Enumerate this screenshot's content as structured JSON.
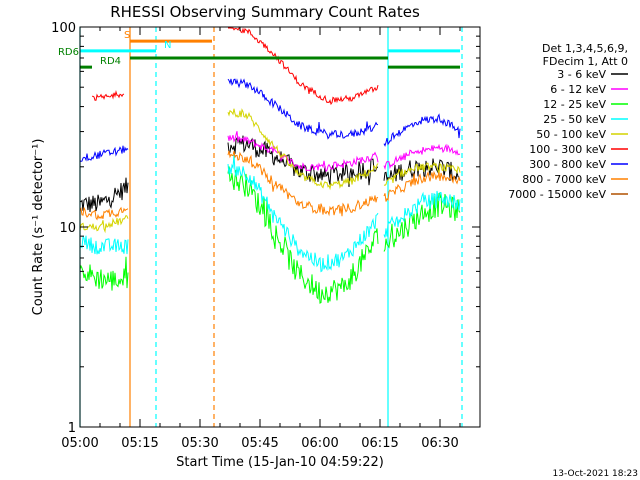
{
  "chart_data": {
    "type": "line",
    "title": "RHESSI Observing Summary Count Rates",
    "xlabel": "Start Time (15-Jan-10 04:59:22)",
    "ylabel": "Count Rate (s⁻¹ detector⁻¹)",
    "yscale": "log",
    "ylim": [
      1,
      100
    ],
    "xlim_minutes": [
      0,
      100
    ],
    "x_ticks": [
      {
        "m": 0,
        "label": "05:00"
      },
      {
        "m": 15,
        "label": "05:15"
      },
      {
        "m": 30,
        "label": "05:30"
      },
      {
        "m": 45,
        "label": "05:45"
      },
      {
        "m": 60,
        "label": "06:00"
      },
      {
        "m": 75,
        "label": "06:15"
      },
      {
        "m": 90,
        "label": "06:30"
      }
    ],
    "y_ticks": [
      {
        "v": 1,
        "label": "1"
      },
      {
        "v": 10,
        "label": "10"
      },
      {
        "v": 100,
        "label": "100"
      }
    ],
    "legend": {
      "placement": "right",
      "header": [
        "Det 1,3,4,5,6,9,",
        "FDecim 1, Att 0"
      ],
      "entries": [
        {
          "label": "3 - 6 keV",
          "color": "#000000"
        },
        {
          "label": "6 - 12 keV",
          "color": "#ff00ff"
        },
        {
          "label": "12 - 25 keV",
          "color": "#00ff00"
        },
        {
          "label": "25 - 50 keV",
          "color": "#00ffff"
        },
        {
          "label": "50 - 100 keV",
          "color": "#d4d400"
        },
        {
          "label": "100 - 300 keV",
          "color": "#ff0000"
        },
        {
          "label": "300 - 800 keV",
          "color": "#0000ff"
        },
        {
          "label": "800 - 7000 keV",
          "color": "#ff8000"
        },
        {
          "label": "7000 - 15000 keV",
          "color": "#b05000"
        }
      ]
    },
    "series": [
      {
        "name": "3 - 6 keV",
        "color": "#000000",
        "noise": 0.1,
        "segments": [
          {
            "x": [
              0,
              5,
              10,
              12
            ],
            "y": [
              13,
              13,
              15,
              16
            ]
          },
          {
            "x": [
              37,
              42,
              48,
              55,
              62,
              68,
              74.5
            ],
            "y": [
              26,
              26,
              23,
              19,
              18,
              19,
              20
            ]
          },
          {
            "x": [
              76,
              80,
              85,
              90,
              95
            ],
            "y": [
              17,
              19,
              20,
              20,
              18
            ]
          }
        ]
      },
      {
        "name": "6 - 12 keV",
        "color": "#ff00ff",
        "noise": 0.04,
        "segments": [
          {
            "x": [
              37,
              42,
              48,
              55,
              62,
              68,
              74.5
            ],
            "y": [
              28,
              27,
              24,
              20,
              20,
              21,
              23
            ]
          },
          {
            "x": [
              76,
              80,
              85,
              90,
              95
            ],
            "y": [
              20,
              22,
              24,
              25,
              24
            ]
          }
        ]
      },
      {
        "name": "12 - 25 keV",
        "color": "#00ff00",
        "noise": 0.12,
        "segments": [
          {
            "x": [
              0,
              4,
              8,
              12
            ],
            "y": [
              6,
              5.6,
              5.4,
              5.5
            ]
          },
          {
            "x": [
              37,
              42,
              48,
              54,
              60,
              66,
              72,
              74.5
            ],
            "y": [
              18,
              16,
              10,
              6,
              4.7,
              5,
              7.5,
              9
            ]
          },
          {
            "x": [
              76,
              80,
              85,
              90,
              95
            ],
            "y": [
              8,
              9.5,
              11.5,
              13,
              12
            ]
          }
        ]
      },
      {
        "name": "25 - 50 keV",
        "color": "#00ffff",
        "noise": 0.08,
        "segments": [
          {
            "x": [
              0,
              4,
              8,
              12
            ],
            "y": [
              8.5,
              8,
              8,
              8
            ]
          },
          {
            "x": [
              37,
              42,
              48,
              54,
              60,
              66,
              72,
              74.5
            ],
            "y": [
              20,
              18.5,
              12,
              8,
              6.5,
              7,
              9.5,
              11
            ]
          },
          {
            "x": [
              76,
              80,
              85,
              90,
              95
            ],
            "y": [
              9.5,
              11,
              13,
              14,
              13
            ]
          }
        ]
      },
      {
        "name": "50 - 100 keV",
        "color": "#d4d400",
        "noise": 0.04,
        "segments": [
          {
            "x": [
              0,
              5,
              12
            ],
            "y": [
              10,
              10,
              11
            ]
          },
          {
            "x": [
              37,
              42,
              48,
              55,
              62,
              68,
              74.5
            ],
            "y": [
              38,
              36,
              26,
              18,
              16,
              17,
              20
            ]
          },
          {
            "x": [
              76,
              80,
              85,
              90,
              95
            ],
            "y": [
              16,
              18.5,
              20,
              20,
              19
            ]
          }
        ]
      },
      {
        "name": "100 - 300 keV",
        "color": "#ff0000",
        "noise": 0.03,
        "segments": [
          {
            "x": [
              3,
              8,
              11
            ],
            "y": [
              44,
              45,
              47
            ]
          },
          {
            "x": [
              37,
              42,
              48,
              55,
              62,
              68,
              74.5
            ],
            "y": [
              100,
              95,
              75,
              52,
              43,
              44,
              50
            ]
          }
        ]
      },
      {
        "name": "300 - 800 keV",
        "color": "#0000ff",
        "noise": 0.04,
        "segments": [
          {
            "x": [
              0,
              5,
              10,
              12
            ],
            "y": [
              22,
              23,
              24,
              25
            ]
          },
          {
            "x": [
              37,
              42,
              48,
              55,
              62,
              68,
              74.5
            ],
            "y": [
              53,
              52,
              42,
              32,
              29,
              29,
              32
            ]
          },
          {
            "x": [
              76,
              80,
              85,
              90,
              95
            ],
            "y": [
              26,
              30,
              34,
              35,
              30
            ]
          }
        ]
      },
      {
        "name": "800 - 7000 keV",
        "color": "#ff8000",
        "noise": 0.05,
        "segments": [
          {
            "x": [
              0,
              5,
              10,
              12
            ],
            "y": [
              12,
              11.5,
              12,
              13
            ]
          },
          {
            "x": [
              37,
              42,
              48,
              55,
              62,
              68,
              74.5
            ],
            "y": [
              23,
              22,
              17,
              13,
              12,
              12.5,
              14
            ]
          },
          {
            "x": [
              76,
              80,
              85,
              90,
              95
            ],
            "y": [
              14,
              15.5,
              17.5,
              18,
              17
            ]
          }
        ]
      }
    ],
    "annotations": {
      "flags": [
        {
          "label": "S",
          "color": "#ff8000",
          "y": 85,
          "x0": 12.5,
          "x1": 33,
          "label_x": 11
        },
        {
          "label": "N",
          "color": "#00ffff",
          "y": 76,
          "x0": 0,
          "x1": 19,
          "label_x": 21
        },
        {
          "label": "",
          "color": "#00ffff",
          "y": 76,
          "x0": 77,
          "x1": 95
        },
        {
          "label": "RD6",
          "color": "#008000",
          "y": 70,
          "x0": 12.5,
          "x1": 77,
          "label_side": "left"
        },
        {
          "label": "RD4",
          "color": "#008000",
          "y": 63,
          "x0": 0,
          "x1": 3,
          "label_x": 5
        },
        {
          "label": "",
          "color": "#008000",
          "y": 63,
          "x0": 77,
          "x1": 95
        }
      ],
      "vlines": [
        {
          "x": 0,
          "color": "#00ffff",
          "style": "solid"
        },
        {
          "x": 19,
          "color": "#00ffff",
          "style": "dashed"
        },
        {
          "x": 12.5,
          "color": "#ff8000",
          "style": "solid"
        },
        {
          "x": 33.5,
          "color": "#ff8000",
          "style": "dashed"
        },
        {
          "x": 77,
          "color": "#00ffff",
          "style": "solid"
        },
        {
          "x": 95.5,
          "color": "#00ffff",
          "style": "dashed"
        }
      ]
    },
    "footer_timestamp": "13-Oct-2021 18:23"
  }
}
